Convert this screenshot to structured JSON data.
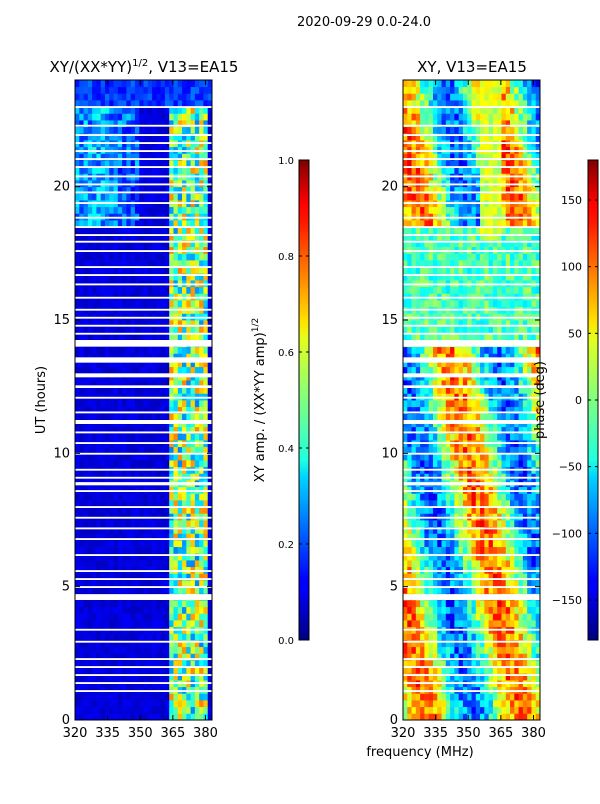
{
  "suptitle": "2020-09-29 0.0-24.0",
  "chart_data": [
    {
      "type": "heatmap",
      "title_main": "XY/(XX*YY)",
      "title_exp": "1/2",
      "title_tail": ", V13=EA15",
      "xlabel": "",
      "ylabel": "UT (hours)",
      "xlim": [
        320,
        383
      ],
      "ylim": [
        0,
        24
      ],
      "xticks": [
        {
          "value": 320,
          "label": "320"
        },
        {
          "value": 335,
          "label": "335"
        },
        {
          "value": 350,
          "label": "350"
        },
        {
          "value": 365,
          "label": "365"
        },
        {
          "value": 380,
          "label": "380"
        }
      ],
      "yticks": [
        {
          "value": 0,
          "label": "0"
        },
        {
          "value": 5,
          "label": "5"
        },
        {
          "value": 10,
          "label": "10"
        },
        {
          "value": 15,
          "label": "15"
        },
        {
          "value": 20,
          "label": "20"
        }
      ],
      "colormap": "jet",
      "colorbar": {
        "label_main": "XY amp. / (XX*YY amp)",
        "label_exp": "1/2",
        "range": [
          0.0,
          1.0
        ],
        "ticks": [
          {
            "value": 0.0,
            "label": "0.0"
          },
          {
            "value": 0.2,
            "label": "0.2"
          },
          {
            "value": 0.4,
            "label": "0.4"
          },
          {
            "value": 0.6,
            "label": "0.6"
          },
          {
            "value": 0.8,
            "label": "0.8"
          },
          {
            "value": 1.0,
            "label": "1.0"
          }
        ]
      }
    },
    {
      "type": "heatmap",
      "title_main": "XY, V13=EA15",
      "xlabel": "frequency (MHz)",
      "ylabel": "",
      "xlim": [
        320,
        383
      ],
      "ylim": [
        0,
        24
      ],
      "xticks": [
        {
          "value": 320,
          "label": "320"
        },
        {
          "value": 335,
          "label": "335"
        },
        {
          "value": 350,
          "label": "350"
        },
        {
          "value": 365,
          "label": "365"
        },
        {
          "value": 380,
          "label": "380"
        }
      ],
      "yticks": [
        {
          "value": 0,
          "label": "0"
        },
        {
          "value": 5,
          "label": "5"
        },
        {
          "value": 10,
          "label": "10"
        },
        {
          "value": 15,
          "label": "15"
        },
        {
          "value": 20,
          "label": "20"
        }
      ],
      "colormap": "jet",
      "colorbar": {
        "label_main": "phase (deg)",
        "range": [
          -180,
          180
        ],
        "ticks": [
          {
            "value": -150,
            "label": "−150"
          },
          {
            "value": -100,
            "label": "−100"
          },
          {
            "value": -50,
            "label": "−50"
          },
          {
            "value": 0,
            "label": "0"
          },
          {
            "value": 50,
            "label": "50"
          },
          {
            "value": 100,
            "label": "100"
          },
          {
            "value": 150,
            "label": "150"
          }
        ]
      }
    }
  ],
  "flagged_gaps_ut_hours": [
    [
      1.05,
      1.12
    ],
    [
      1.35,
      1.42
    ],
    [
      1.65,
      1.72
    ],
    [
      1.95,
      2.02
    ],
    [
      2.25,
      2.32
    ],
    [
      2.9,
      2.97
    ],
    [
      3.35,
      3.42
    ],
    [
      4.5,
      4.72
    ],
    [
      4.95,
      5.02
    ],
    [
      5.25,
      5.32
    ],
    [
      5.55,
      5.62
    ],
    [
      6.15,
      6.22
    ],
    [
      6.75,
      6.82
    ],
    [
      7.15,
      7.22
    ],
    [
      7.55,
      7.62
    ],
    [
      7.95,
      8.02
    ],
    [
      8.55,
      8.62
    ],
    [
      8.8,
      8.92
    ],
    [
      9.05,
      9.12
    ],
    [
      9.35,
      9.42
    ],
    [
      9.95,
      10.02
    ],
    [
      10.35,
      10.42
    ],
    [
      10.75,
      10.82
    ],
    [
      11.1,
      11.25
    ],
    [
      11.5,
      11.57
    ],
    [
      12.05,
      12.12
    ],
    [
      12.45,
      12.55
    ],
    [
      12.85,
      13.0
    ],
    [
      13.4,
      13.6
    ],
    [
      14.0,
      14.25
    ],
    [
      14.45,
      14.52
    ],
    [
      14.75,
      14.82
    ],
    [
      15.05,
      15.12
    ],
    [
      15.35,
      15.42
    ],
    [
      15.8,
      15.87
    ],
    [
      16.3,
      16.37
    ],
    [
      16.65,
      16.72
    ],
    [
      16.95,
      17.02
    ],
    [
      17.55,
      17.62
    ],
    [
      17.9,
      17.97
    ],
    [
      18.15,
      18.22
    ],
    [
      18.45,
      18.52
    ],
    [
      18.8,
      18.87
    ],
    [
      19.35,
      19.42
    ],
    [
      19.75,
      19.82
    ],
    [
      20.05,
      20.12
    ],
    [
      20.35,
      20.42
    ],
    [
      20.7,
      20.77
    ],
    [
      21.0,
      21.07
    ],
    [
      21.3,
      21.37
    ],
    [
      21.6,
      21.67
    ],
    [
      21.9,
      21.97
    ],
    [
      22.25,
      22.32
    ],
    [
      22.95,
      23.02
    ]
  ]
}
